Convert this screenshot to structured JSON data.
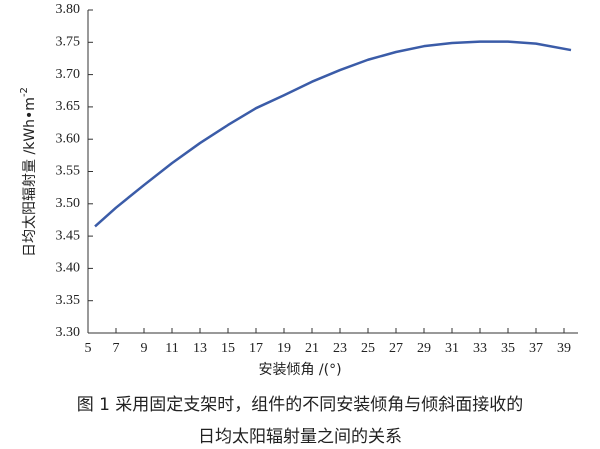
{
  "chart_data": {
    "type": "line",
    "x_label": "安装倾角 /(°)",
    "y_label": "日均太阳辐射量 /kWh•m",
    "y_label_sup": "-2",
    "caption": [
      "图 1  采用固定支架时，组件的不同安装倾角与倾斜面接收的",
      "日均太阳辐射量之间的关系"
    ],
    "x": [
      5.5,
      7,
      9,
      11,
      13,
      15,
      17,
      19,
      21,
      23,
      25,
      27,
      29,
      31,
      33,
      35,
      37,
      39.5
    ],
    "series": [
      {
        "color": "#3b5ca8",
        "values": [
          3.465,
          3.494,
          3.529,
          3.563,
          3.594,
          3.622,
          3.648,
          3.668,
          3.689,
          3.707,
          3.723,
          3.735,
          3.744,
          3.749,
          3.751,
          3.751,
          3.748,
          3.738
        ]
      }
    ],
    "xlim": [
      5,
      40
    ],
    "ylim": [
      3.3,
      3.8
    ],
    "xticks": [
      5,
      7,
      9,
      11,
      13,
      15,
      17,
      19,
      21,
      23,
      25,
      27,
      29,
      31,
      33,
      35,
      37,
      39
    ],
    "yticks": [
      {
        "value": 3.3,
        "label": "3.30"
      },
      {
        "value": 3.35,
        "label": "3.35"
      },
      {
        "value": 3.4,
        "label": "3.40"
      },
      {
        "value": 3.45,
        "label": "3.45"
      },
      {
        "value": 3.5,
        "label": "3.50"
      },
      {
        "value": 3.55,
        "label": "3.55"
      },
      {
        "value": 3.6,
        "label": "3.60"
      },
      {
        "value": 3.65,
        "label": "3.65"
      },
      {
        "value": 3.7,
        "label": "3.70"
      },
      {
        "value": 3.75,
        "label": "3.75"
      },
      {
        "value": 3.8,
        "label": "3.80"
      }
    ]
  }
}
